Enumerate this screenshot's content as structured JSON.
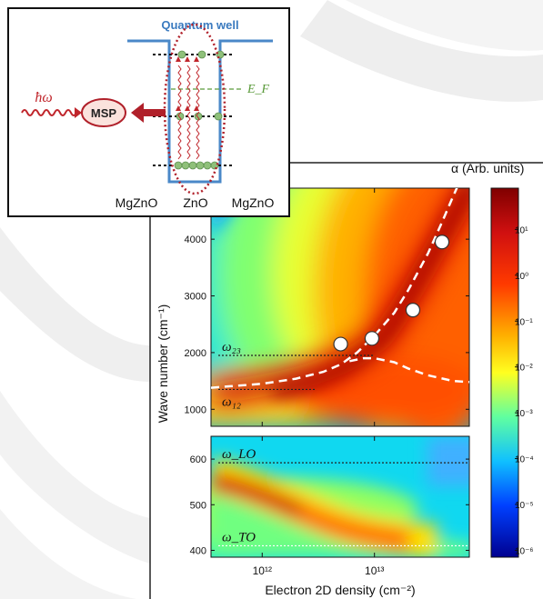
{
  "chart_data": {
    "type": "heatmap",
    "title": "",
    "xlabel": "Electron 2D density (cm⁻²)",
    "x_scale": "log",
    "xlim": [
      350000000000.0,
      70000000000000.0
    ],
    "x_ticks": [
      {
        "value": 1000000000000.0,
        "label": "10¹²"
      },
      {
        "value": 10000000000000.0,
        "label": "10¹³"
      }
    ],
    "ylabel": "Wave number (cm⁻¹)",
    "colorbar": {
      "label": "α (Arb. units)",
      "scale": "log",
      "ticks": [
        {
          "value": 10.0,
          "label": "10¹"
        },
        {
          "value": 1.0,
          "label": "10⁰"
        },
        {
          "value": 0.1,
          "label": "10⁻¹"
        },
        {
          "value": 0.01,
          "label": "10⁻²"
        },
        {
          "value": 0.001,
          "label": "10⁻³"
        },
        {
          "value": 0.0001,
          "label": "10⁻⁴"
        },
        {
          "value": 1e-05,
          "label": "10⁻⁵"
        },
        {
          "value": 1e-06,
          "label": "10⁻⁶"
        }
      ]
    },
    "panels": [
      {
        "name": "top",
        "ylim": [
          700,
          4900
        ],
        "y_ticks": [
          1000,
          2000,
          3000,
          4000
        ],
        "reference_lines": [
          {
            "label": "ω₂₃",
            "y": 1950,
            "x_end": 10000000000000.0
          },
          {
            "label": "ω₁₂",
            "y": 1350,
            "x_end": 3000000000000.0
          }
        ],
        "measured_points": {
          "x": [
            5000000000000.0,
            9500000000000.0,
            22000000000000.0,
            40000000000000.0
          ],
          "y": [
            2150,
            2250,
            2750,
            3950
          ]
        },
        "dashed_curves": [
          {
            "x": [
              350000000000.0,
              1000000000000.0,
              2000000000000.0,
              3500000000000.0,
              5000000000000.0,
              7000000000000.0,
              10000000000000.0,
              15000000000000.0,
              20000000000000.0,
              30000000000000.0,
              40000000000000.0,
              50000000000000.0,
              70000000000000.0
            ],
            "y": [
              1380,
              1450,
              1540,
              1660,
              1790,
              2000,
              2300,
              2700,
              3100,
              3750,
              4300,
              4750,
              5400
            ]
          },
          {
            "x": [
              6000000000000.0,
              8000000000000.0,
              10000000000000.0,
              15000000000000.0,
              20000000000000.0,
              30000000000000.0,
              50000000000000.0,
              70000000000000.0
            ],
            "y": [
              1850,
              1900,
              1900,
              1830,
              1720,
              1600,
              1500,
              1480
            ]
          }
        ]
      },
      {
        "name": "bottom",
        "ylim": [
          385,
          650
        ],
        "y_ticks": [
          400,
          500,
          600
        ],
        "reference_lines": [
          {
            "label": "ω_LO",
            "y": 592
          },
          {
            "label": "ω_TO",
            "y": 410
          }
        ]
      }
    ]
  },
  "inset": {
    "title": "Quantum well",
    "photon_label": "ħω",
    "msp_label": "MSP",
    "fermi_label": "E_F",
    "materials": [
      "MgZnO",
      "ZnO",
      "MgZnO"
    ]
  },
  "colors": {
    "quantum_well": "#4a88c8",
    "wave": "#c0262c",
    "dots": "#8fc07a",
    "fermi": "#5a9a3a",
    "title": "#3a7abf"
  }
}
